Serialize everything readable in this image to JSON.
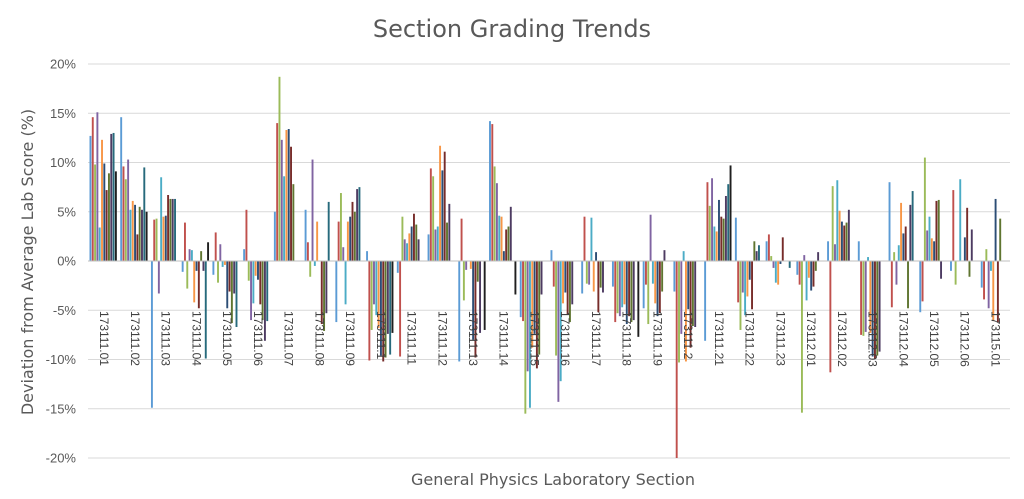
{
  "chart_data": {
    "type": "bar",
    "title": "Section Grading Trends",
    "xlabel": "General Physics Laboratory Section",
    "ylabel": "Deviation from Average Lab Score (%)",
    "ylim": [
      -20,
      20
    ],
    "ytick_values": [
      -20,
      -15,
      -10,
      -5,
      0,
      5,
      10,
      15,
      20
    ],
    "ytick_labels": [
      "-20%",
      "-15%",
      "-10%",
      "-5%",
      "0%",
      "5%",
      "10%",
      "15%",
      "20%"
    ],
    "grid": true,
    "legend": "none",
    "categories": [
      "173111.01",
      "173111.02",
      "173111.03",
      "173111.04",
      "173111.05",
      "173111.06",
      "173111.07",
      "173111.08",
      "173111.09",
      "173111.1",
      "173111.11",
      "173111.12",
      "173111.13",
      "173111.14",
      "173111.15",
      "173111.16",
      "173111.17",
      "173111.18",
      "173111.19",
      "173111.2",
      "173111.21",
      "173111.22",
      "173111.23",
      "173112.01",
      "173112.02",
      "173112.03",
      "173112.04",
      "173112.05",
      "173112.06",
      "173115.01"
    ],
    "series_colors": [
      "#5b9bd5",
      "#c0504d",
      "#9bbb59",
      "#8064a2",
      "#4bacc6",
      "#f79646",
      "#2c4d75",
      "#772c2a",
      "#5f7530",
      "#4d3b62",
      "#276a7c",
      "#1f1f1f"
    ],
    "values": [
      [
        12.7,
        14.6,
        9.8,
        15.1,
        3.4,
        12.3,
        9.9,
        7.2,
        8.9,
        12.9,
        13.0,
        9.1
      ],
      [
        14.6,
        9.6,
        8.3,
        10.3,
        5.2,
        6.1,
        5.7,
        2.7,
        5.5,
        5.2,
        9.5,
        5.0
      ],
      [
        -14.9,
        4.2,
        4.3,
        -3.3,
        8.5,
        4.5,
        4.6,
        6.7,
        6.3,
        6.3,
        6.3,
        0.0
      ],
      [
        -1.1,
        3.9,
        -2.8,
        1.2,
        1.1,
        -4.2,
        -1.0,
        -4.8,
        1.0,
        -1.0,
        -9.9,
        1.9
      ],
      [
        -1.4,
        2.9,
        -2.2,
        1.7,
        -0.6,
        -0.4,
        -4.8,
        -3.1,
        -6.3,
        -3.3,
        -6.7,
        0.0
      ],
      [
        1.2,
        5.2,
        -2.0,
        -6.0,
        -4.3,
        -1.5,
        -1.9,
        -4.4,
        -6.0,
        -8.1,
        -6.1,
        0.0
      ],
      [
        5.0,
        14.0,
        18.7,
        12.3,
        8.6,
        13.3,
        13.4,
        11.6,
        7.8,
        0.0,
        0.0,
        0.0
      ],
      [
        5.2,
        1.9,
        -1.6,
        10.3,
        -0.5,
        4.0,
        0.0,
        -6.4,
        -7.1,
        -5.3,
        6.0,
        0.0
      ],
      [
        -6.2,
        4.0,
        6.9,
        1.4,
        -4.4,
        4.0,
        4.5,
        6.0,
        5.0,
        7.3,
        7.5,
        0.0
      ],
      [
        1.0,
        -10.1,
        -7.0,
        -4.4,
        -5.5,
        -6.8,
        -9.6,
        -10.2,
        -9.8,
        -7.4,
        -9.5,
        -7.3
      ],
      [
        -1.2,
        -9.7,
        4.5,
        2.2,
        1.8,
        2.8,
        3.5,
        4.8,
        3.7,
        2.2,
        0.0,
        0.0
      ],
      [
        2.7,
        9.4,
        8.6,
        3.2,
        3.5,
        11.7,
        9.2,
        11.1,
        3.9,
        5.8,
        0.0,
        0.0
      ],
      [
        -10.2,
        4.3,
        -4.0,
        -0.9,
        0.0,
        -0.8,
        -8.0,
        -9.8,
        -2.1,
        -7.3,
        0.0,
        -7.0
      ],
      [
        14.2,
        13.9,
        9.6,
        7.9,
        4.6,
        4.5,
        1.0,
        3.2,
        3.5,
        5.5,
        0.0,
        -3.4
      ],
      [
        -5.7,
        -6.1,
        -15.5,
        -11.2,
        -14.9,
        -8.8,
        -7.4,
        -10.9,
        -9.5,
        -3.4,
        0.0,
        0.0
      ],
      [
        1.1,
        -2.6,
        -9.6,
        -14.3,
        -12.2,
        -4.3,
        -3.2,
        -5.4,
        -6.2,
        -4.4,
        0.0,
        0.0
      ],
      [
        -3.3,
        4.5,
        -2.3,
        -2.4,
        4.4,
        -3.1,
        0.9,
        -5.2,
        -2.7,
        -3.2,
        0.0,
        0.0
      ],
      [
        -2.6,
        -6.2,
        -5.3,
        -5.6,
        -4.7,
        -4.4,
        -6.4,
        -5.6,
        -6.2,
        -6.0,
        0.0,
        -7.7
      ],
      [
        -4.8,
        -2.4,
        -6.4,
        4.7,
        -2.3,
        -4.3,
        -5.6,
        -5.3,
        -3.1,
        1.1,
        0.0,
        0.0
      ],
      [
        -3.1,
        -20.0,
        -10.3,
        -7.4,
        1.0,
        -10.2,
        -4.9,
        -8.8,
        -6.6,
        -6.7,
        0.0,
        0.0
      ],
      [
        -8.1,
        8.0,
        5.6,
        8.4,
        3.5,
        3.0,
        6.2,
        4.5,
        4.3,
        6.6,
        7.8,
        9.7
      ],
      [
        4.4,
        -4.2,
        -7.0,
        -3.2,
        -5.5,
        -3.6,
        -1.9,
        -4.9,
        2.0,
        1.0,
        1.6,
        0.0
      ],
      [
        2.0,
        2.7,
        0.5,
        -0.7,
        -2.2,
        -2.4,
        -0.3,
        2.4,
        0.0,
        0.0,
        -0.7,
        0.0
      ],
      [
        -1.4,
        -2.4,
        -15.4,
        0.6,
        -4.0,
        -1.7,
        -3.0,
        -2.6,
        -1.0,
        0.9,
        0.0,
        0.0
      ],
      [
        2.0,
        -11.3,
        7.6,
        1.7,
        8.2,
        5.1,
        4.0,
        3.6,
        3.9,
        5.2,
        0.0,
        0.0
      ],
      [
        2.0,
        -7.5,
        -7.6,
        -7.2,
        0.4,
        -7.3,
        -9.7,
        -9.9,
        -9.6,
        -9.2,
        0.0,
        0.0
      ],
      [
        8.0,
        -4.7,
        0.9,
        -2.4,
        1.6,
        5.9,
        2.8,
        3.5,
        -4.8,
        5.7,
        7.1,
        0.0
      ],
      [
        -5.2,
        -4.1,
        10.5,
        3.1,
        4.5,
        2.3,
        2.0,
        6.1,
        6.2,
        -1.8,
        0.0,
        0.0
      ],
      [
        -1.0,
        7.2,
        -2.4,
        0.0,
        8.3,
        0.0,
        2.4,
        5.4,
        -1.6,
        3.2,
        0.0,
        0.0
      ],
      [
        -2.7,
        -3.9,
        1.2,
        -4.8,
        -1.0,
        -6.1,
        6.3,
        -6.2,
        4.3,
        0.0,
        0.0,
        0.0
      ]
    ]
  }
}
